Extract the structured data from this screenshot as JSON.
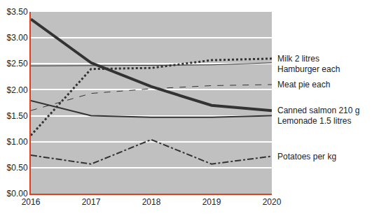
{
  "chart_data": {
    "type": "line",
    "x": [
      2016,
      2017,
      2018,
      2019,
      2020
    ],
    "xlim": [
      2016,
      2020
    ],
    "xticks": [
      2016,
      2017,
      2018,
      2019,
      2020
    ],
    "ylim": [
      0,
      3.5
    ],
    "yticks": [
      {
        "value": 0,
        "label": "$0.00"
      },
      {
        "value": 0.5,
        "label": "$0.50"
      },
      {
        "value": 1,
        "label": "$1.00"
      },
      {
        "value": 1.5,
        "label": "$1.50"
      },
      {
        "value": 2,
        "label": "$2.00"
      },
      {
        "value": 2.5,
        "label": "$2.50"
      },
      {
        "value": 3,
        "label": "$3.00"
      },
      {
        "value": 3.5,
        "label": "$3.50"
      }
    ],
    "grid": true,
    "series": [
      {
        "name": "Milk 2 litres",
        "color": "#333333",
        "line_style": "dot",
        "values": [
          1.12,
          2.4,
          2.42,
          2.57,
          2.6
        ]
      },
      {
        "name": "Hamburger each",
        "color": "#333333",
        "line_style": "solid",
        "values": [
          2.46,
          2.47,
          2.47,
          2.48,
          2.52
        ]
      },
      {
        "name": "Meat pie each",
        "color": "#333333",
        "line_style": "dash",
        "values": [
          1.6,
          1.93,
          2.02,
          2.08,
          2.1
        ]
      },
      {
        "name": "Canned salmon 210 g",
        "color": "#333333",
        "line_style": "solid",
        "values": [
          3.36,
          2.52,
          2.06,
          1.7,
          1.6
        ]
      },
      {
        "name": "Lemonade 1.5 litres",
        "color": "#333333",
        "line_style": "solid",
        "values": [
          1.79,
          1.5,
          1.47,
          1.47,
          1.5
        ]
      },
      {
        "name": "Potatoes per kg",
        "color": "#333333",
        "line_style": "dashdot",
        "values": [
          0.74,
          0.57,
          1.04,
          0.57,
          0.72
        ]
      }
    ]
  }
}
